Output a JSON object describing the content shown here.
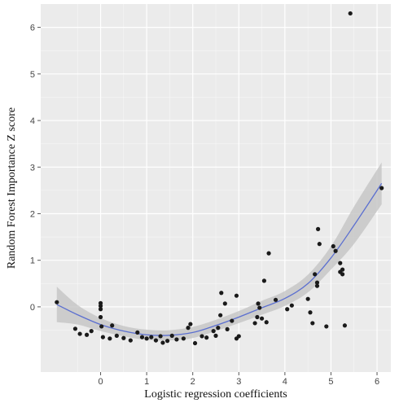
{
  "chart_data": {
    "type": "scatter",
    "xlabel": "Logistic regression coefficients",
    "ylabel": "Random Forest Importance Z score",
    "xlim": [
      -1.3,
      6.3
    ],
    "ylim": [
      -1.4,
      6.5
    ],
    "x_ticks": [
      0,
      1,
      2,
      3,
      4,
      5,
      6
    ],
    "y_ticks": [
      0,
      1,
      2,
      3,
      4,
      5,
      6
    ],
    "grid": true,
    "colors": {
      "panel": "#ebebeb",
      "grid_major": "#ffffff",
      "point": "#1a1a1a",
      "smooth_line": "#5b6fd0",
      "ribbon": "#c4c4c4"
    },
    "points": [
      {
        "x": -0.95,
        "y": 0.1
      },
      {
        "x": -0.55,
        "y": -0.47
      },
      {
        "x": -0.45,
        "y": -0.58
      },
      {
        "x": -0.3,
        "y": -0.6
      },
      {
        "x": -0.2,
        "y": -0.52
      },
      {
        "x": 0.0,
        "y": 0.08
      },
      {
        "x": 0.0,
        "y": 0.02
      },
      {
        "x": 0.0,
        "y": -0.05
      },
      {
        "x": 0.0,
        "y": -0.22
      },
      {
        "x": 0.02,
        "y": -0.42
      },
      {
        "x": 0.05,
        "y": -0.65
      },
      {
        "x": 0.2,
        "y": -0.68
      },
      {
        "x": 0.25,
        "y": -0.4
      },
      {
        "x": 0.35,
        "y": -0.62
      },
      {
        "x": 0.5,
        "y": -0.67
      },
      {
        "x": 0.65,
        "y": -0.72
      },
      {
        "x": 0.8,
        "y": -0.55
      },
      {
        "x": 0.9,
        "y": -0.65
      },
      {
        "x": 1.0,
        "y": -0.68
      },
      {
        "x": 1.1,
        "y": -0.65
      },
      {
        "x": 1.2,
        "y": -0.72
      },
      {
        "x": 1.3,
        "y": -0.63
      },
      {
        "x": 1.35,
        "y": -0.77
      },
      {
        "x": 1.45,
        "y": -0.73
      },
      {
        "x": 1.55,
        "y": -0.62
      },
      {
        "x": 1.65,
        "y": -0.7
      },
      {
        "x": 1.8,
        "y": -0.68
      },
      {
        "x": 1.9,
        "y": -0.45
      },
      {
        "x": 1.95,
        "y": -0.37
      },
      {
        "x": 2.05,
        "y": -0.78
      },
      {
        "x": 2.2,
        "y": -0.63
      },
      {
        "x": 2.3,
        "y": -0.66
      },
      {
        "x": 2.45,
        "y": -0.52
      },
      {
        "x": 2.5,
        "y": -0.62
      },
      {
        "x": 2.55,
        "y": -0.45
      },
      {
        "x": 2.6,
        "y": -0.18
      },
      {
        "x": 2.62,
        "y": 0.3
      },
      {
        "x": 2.7,
        "y": 0.07
      },
      {
        "x": 2.75,
        "y": -0.48
      },
      {
        "x": 2.85,
        "y": -0.3
      },
      {
        "x": 2.95,
        "y": 0.24
      },
      {
        "x": 2.95,
        "y": -0.68
      },
      {
        "x": 3.0,
        "y": -0.63
      },
      {
        "x": 3.35,
        "y": -0.35
      },
      {
        "x": 3.4,
        "y": -0.22
      },
      {
        "x": 3.42,
        "y": 0.07
      },
      {
        "x": 3.45,
        "y": -0.02
      },
      {
        "x": 3.5,
        "y": -0.25
      },
      {
        "x": 3.55,
        "y": 0.56
      },
      {
        "x": 3.6,
        "y": -0.33
      },
      {
        "x": 3.65,
        "y": 1.15
      },
      {
        "x": 3.8,
        "y": 0.15
      },
      {
        "x": 4.05,
        "y": -0.05
      },
      {
        "x": 4.15,
        "y": 0.03
      },
      {
        "x": 4.5,
        "y": 0.17
      },
      {
        "x": 4.55,
        "y": -0.12
      },
      {
        "x": 4.6,
        "y": -0.35
      },
      {
        "x": 4.65,
        "y": 0.7
      },
      {
        "x": 4.7,
        "y": 0.52
      },
      {
        "x": 4.7,
        "y": 0.45
      },
      {
        "x": 4.72,
        "y": 1.67
      },
      {
        "x": 4.75,
        "y": 1.35
      },
      {
        "x": 4.9,
        "y": -0.42
      },
      {
        "x": 5.05,
        "y": 1.3
      },
      {
        "x": 5.1,
        "y": 1.2
      },
      {
        "x": 5.2,
        "y": 0.94
      },
      {
        "x": 5.2,
        "y": 0.75
      },
      {
        "x": 5.25,
        "y": 0.7
      },
      {
        "x": 5.25,
        "y": 0.8
      },
      {
        "x": 5.3,
        "y": -0.4
      },
      {
        "x": 5.42,
        "y": 6.3
      },
      {
        "x": 6.1,
        "y": 2.55
      }
    ],
    "smooth": [
      {
        "x": -0.95,
        "y": 0.05,
        "lo": -0.33,
        "hi": 0.43
      },
      {
        "x": -0.5,
        "y": -0.17,
        "lo": -0.38,
        "hi": 0.04
      },
      {
        "x": 0.0,
        "y": -0.38,
        "lo": -0.52,
        "hi": -0.24
      },
      {
        "x": 0.5,
        "y": -0.52,
        "lo": -0.63,
        "hi": -0.41
      },
      {
        "x": 1.0,
        "y": -0.6,
        "lo": -0.71,
        "hi": -0.49
      },
      {
        "x": 1.5,
        "y": -0.61,
        "lo": -0.72,
        "hi": -0.5
      },
      {
        "x": 2.0,
        "y": -0.55,
        "lo": -0.67,
        "hi": -0.43
      },
      {
        "x": 2.5,
        "y": -0.4,
        "lo": -0.52,
        "hi": -0.28
      },
      {
        "x": 3.0,
        "y": -0.22,
        "lo": -0.35,
        "hi": -0.09
      },
      {
        "x": 3.5,
        "y": -0.02,
        "lo": -0.17,
        "hi": 0.13
      },
      {
        "x": 4.0,
        "y": 0.18,
        "lo": 0.02,
        "hi": 0.34
      },
      {
        "x": 4.5,
        "y": 0.5,
        "lo": 0.31,
        "hi": 0.69
      },
      {
        "x": 5.0,
        "y": 1.05,
        "lo": 0.8,
        "hi": 1.3
      },
      {
        "x": 5.5,
        "y": 1.75,
        "lo": 1.35,
        "hi": 2.15
      },
      {
        "x": 6.1,
        "y": 2.65,
        "lo": 2.2,
        "hi": 3.1
      }
    ]
  }
}
